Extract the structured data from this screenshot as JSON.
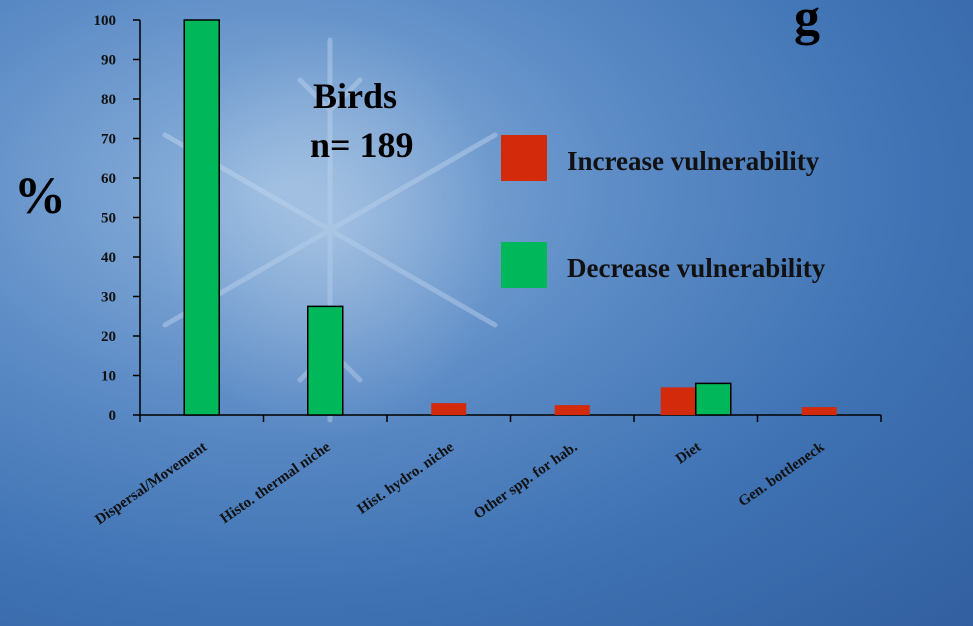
{
  "chart_data": {
    "type": "bar",
    "title": "",
    "title_fragment_visible": "g",
    "ylabel": "%",
    "ylim": [
      0,
      100
    ],
    "yticks": [
      0,
      10,
      20,
      30,
      40,
      50,
      60,
      70,
      80,
      90,
      100
    ],
    "categories": [
      "Dispersal/Movement",
      "Histo. thermal niche",
      "Hist. hydro. niche",
      "Other spp. for hab.",
      "Diet",
      "Gen. bottleneck"
    ],
    "series": [
      {
        "name": "Increase vulnerability",
        "color": "#d42a0c",
        "values": [
          0,
          0,
          3,
          2.5,
          7,
          2
        ]
      },
      {
        "name": "Decrease vulnerability",
        "color": "#00b85a",
        "values": [
          100,
          27.5,
          0,
          0,
          8,
          0
        ]
      }
    ],
    "annotation": {
      "line1": "Birds",
      "line2": "n= 189"
    },
    "legend_placement": "right",
    "grid": false
  }
}
